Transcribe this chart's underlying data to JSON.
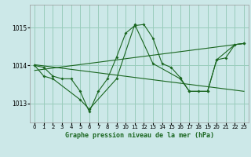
{
  "title": "Graphe pression niveau de la mer (hPa)",
  "bg_color": "#cce8e8",
  "grid_color": "#99ccbb",
  "line_color": "#1a6620",
  "xlim": [
    -0.5,
    23.5
  ],
  "ylim": [
    1012.5,
    1015.6
  ],
  "yticks": [
    1013,
    1014,
    1015
  ],
  "xticks": [
    0,
    1,
    2,
    3,
    4,
    5,
    6,
    7,
    8,
    9,
    10,
    11,
    12,
    13,
    14,
    15,
    16,
    17,
    18,
    19,
    20,
    21,
    22,
    23
  ],
  "series1": [
    [
      0,
      1014.0
    ],
    [
      1,
      1013.95
    ],
    [
      2,
      1013.72
    ],
    [
      3,
      1013.65
    ],
    [
      4,
      1013.65
    ],
    [
      5,
      1013.32
    ],
    [
      6,
      1012.78
    ],
    [
      7,
      1013.32
    ],
    [
      8,
      1013.65
    ],
    [
      9,
      1014.22
    ],
    [
      10,
      1014.85
    ],
    [
      11,
      1015.05
    ],
    [
      12,
      1015.08
    ],
    [
      13,
      1014.72
    ],
    [
      14,
      1014.05
    ],
    [
      15,
      1013.95
    ],
    [
      16,
      1013.68
    ],
    [
      17,
      1013.32
    ],
    [
      18,
      1013.32
    ],
    [
      19,
      1013.32
    ],
    [
      20,
      1014.15
    ],
    [
      21,
      1014.2
    ],
    [
      22,
      1014.55
    ],
    [
      23,
      1014.58
    ]
  ],
  "series2": [
    [
      0,
      1014.0
    ],
    [
      1,
      1013.72
    ],
    [
      2,
      1013.65
    ],
    [
      5,
      1013.1
    ],
    [
      6,
      1012.85
    ],
    [
      9,
      1013.65
    ],
    [
      11,
      1015.08
    ],
    [
      13,
      1014.05
    ],
    [
      16,
      1013.65
    ],
    [
      17,
      1013.32
    ],
    [
      19,
      1013.32
    ],
    [
      20,
      1014.15
    ],
    [
      22,
      1014.55
    ],
    [
      23,
      1014.58
    ]
  ],
  "trend_line1": [
    [
      0,
      1013.87
    ],
    [
      23,
      1014.58
    ]
  ],
  "trend_line2": [
    [
      0,
      1014.02
    ],
    [
      23,
      1013.32
    ]
  ]
}
